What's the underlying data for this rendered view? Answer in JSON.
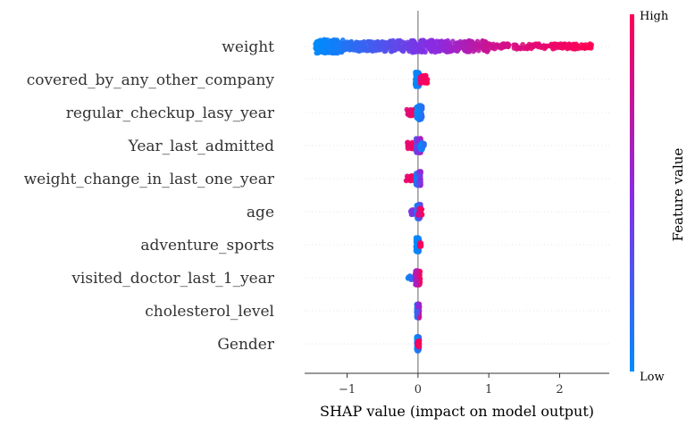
{
  "chart_data": {
    "type": "scatter",
    "subtype": "shap-beeswarm",
    "title": "",
    "xlabel": "SHAP value (impact on model output)",
    "xlim": [
      -1.6,
      2.7
    ],
    "xticks": [
      -1,
      0,
      1,
      2
    ],
    "xtick_labels": [
      "−1",
      "0",
      "1",
      "2"
    ],
    "colorbar": {
      "title": "Feature value",
      "high_label": "High",
      "low_label": "Low",
      "low_color": "#008bfb",
      "mid_color": "#8a2be2",
      "high_color": "#ff0052"
    },
    "features": [
      {
        "name": "weight",
        "segments": [
          {
            "from": -1.45,
            "to": -1.05,
            "count": 170,
            "spread": 0.42,
            "value_from": 0.0,
            "value_to": 0.1
          },
          {
            "from": -1.05,
            "to": -0.4,
            "count": 120,
            "spread": 0.3,
            "value_from": 0.12,
            "value_to": 0.32
          },
          {
            "from": -0.4,
            "to": 0.25,
            "count": 150,
            "spread": 0.38,
            "value_from": 0.32,
            "value_to": 0.52
          },
          {
            "from": 0.25,
            "to": 1.0,
            "count": 160,
            "spread": 0.35,
            "value_from": 0.5,
            "value_to": 0.78
          },
          {
            "from": 1.0,
            "to": 2.45,
            "count": 150,
            "spread": 0.16,
            "value_from": 0.78,
            "value_to": 1.0
          }
        ]
      },
      {
        "name": "covered_by_any_other_company",
        "segments": [
          {
            "from": -0.04,
            "to": 0.02,
            "count": 110,
            "spread": 0.45,
            "value_from": 0.0,
            "value_to": 0.1
          },
          {
            "from": 0.03,
            "to": 0.14,
            "count": 35,
            "spread": 0.25,
            "value_from": 0.92,
            "value_to": 1.0
          }
        ]
      },
      {
        "name": "regular_checkup_lasy_year",
        "segments": [
          {
            "from": -0.16,
            "to": -0.03,
            "count": 35,
            "spread": 0.22,
            "value_from": 0.85,
            "value_to": 1.0
          },
          {
            "from": -0.02,
            "to": 0.06,
            "count": 120,
            "spread": 0.45,
            "value_from": 0.0,
            "value_to": 0.18
          }
        ]
      },
      {
        "name": "Year_last_admitted",
        "segments": [
          {
            "from": -0.15,
            "to": -0.03,
            "count": 30,
            "spread": 0.2,
            "value_from": 0.88,
            "value_to": 1.0
          },
          {
            "from": -0.03,
            "to": 0.04,
            "count": 110,
            "spread": 0.45,
            "value_from": 0.3,
            "value_to": 0.7
          },
          {
            "from": 0.03,
            "to": 0.09,
            "count": 25,
            "spread": 0.25,
            "value_from": 0.0,
            "value_to": 0.15
          }
        ]
      },
      {
        "name": "weight_change_in_last_one_year",
        "segments": [
          {
            "from": -0.17,
            "to": -0.04,
            "count": 35,
            "spread": 0.18,
            "value_from": 0.88,
            "value_to": 1.0
          },
          {
            "from": -0.03,
            "to": 0.04,
            "count": 120,
            "spread": 0.45,
            "value_from": 0.1,
            "value_to": 0.55
          }
        ]
      },
      {
        "name": "age",
        "segments": [
          {
            "from": -0.11,
            "to": -0.02,
            "count": 20,
            "spread": 0.18,
            "value_from": 0.4,
            "value_to": 0.6
          },
          {
            "from": -0.02,
            "to": 0.04,
            "count": 110,
            "spread": 0.45,
            "value_from": 0.0,
            "value_to": 0.45
          },
          {
            "from": 0.0,
            "to": 0.06,
            "count": 20,
            "spread": 0.25,
            "value_from": 0.8,
            "value_to": 1.0
          }
        ]
      },
      {
        "name": "adventure_sports",
        "segments": [
          {
            "from": -0.03,
            "to": 0.02,
            "count": 110,
            "spread": 0.45,
            "value_from": 0.0,
            "value_to": 0.08
          },
          {
            "from": 0.02,
            "to": 0.05,
            "count": 12,
            "spread": 0.12,
            "value_from": 0.95,
            "value_to": 1.0
          }
        ]
      },
      {
        "name": "visited_doctor_last_1_year",
        "segments": [
          {
            "from": -0.14,
            "to": -0.06,
            "count": 12,
            "spread": 0.12,
            "value_from": 0.05,
            "value_to": 0.3
          },
          {
            "from": -0.04,
            "to": 0.03,
            "count": 110,
            "spread": 0.45,
            "value_from": 0.55,
            "value_to": 1.0
          }
        ]
      },
      {
        "name": "cholesterol_level",
        "segments": [
          {
            "from": -0.02,
            "to": 0.02,
            "count": 110,
            "spread": 0.45,
            "value_from": 0.05,
            "value_to": 0.8
          }
        ]
      },
      {
        "name": "Gender",
        "segments": [
          {
            "from": -0.02,
            "to": 0.02,
            "count": 100,
            "spread": 0.45,
            "value_from": 0.0,
            "value_to": 0.2
          },
          {
            "from": -0.01,
            "to": 0.02,
            "count": 30,
            "spread": 0.2,
            "value_from": 0.9,
            "value_to": 1.0
          }
        ]
      }
    ]
  }
}
